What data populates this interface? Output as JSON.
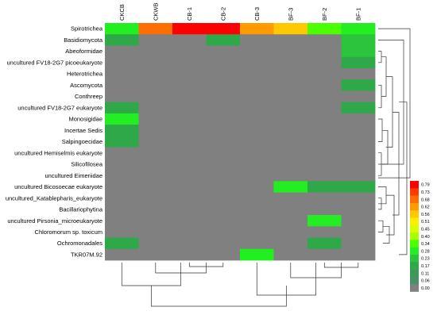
{
  "chart_data": {
    "type": "heatmap",
    "columns": [
      "CKCB",
      "CKWB",
      "CB-1",
      "CB-2",
      "CB-3",
      "BF-3",
      "BF-2",
      "BF-1"
    ],
    "rows": [
      "Spirotrichea",
      "Basidiomycota",
      "Abeoformidae",
      "uncultured FV18-2G7 picoeukaryote",
      "Heterotrichea",
      "Ascomycota",
      "Conthreep",
      "uncultured FV18-2G7 eukaryote",
      "Monosigidae",
      "Incertae Sedis",
      "Salpingoecidae",
      "uncultured Hemiselmis eukaryote",
      "Silicofilosea",
      "uncultured Eimeriidae",
      "uncultured Bicosoecae eukaryote",
      "uncultured_Katablepharis_eukaryote",
      "Bacillariophytina",
      "uncultured Pirsonia_microeukaryote",
      "Chloromorum sp. toxicum",
      "Ochromonadales",
      "TKR07M.92"
    ],
    "values": [
      [
        0.28,
        0.68,
        0.79,
        0.79,
        0.62,
        0.56,
        0.34,
        0.28
      ],
      [
        0.17,
        0.0,
        0.0,
        0.17,
        0.0,
        0.0,
        0.0,
        0.23
      ],
      [
        0.0,
        0.0,
        0.0,
        0.0,
        0.0,
        0.0,
        0.0,
        0.23
      ],
      [
        0.0,
        0.0,
        0.0,
        0.0,
        0.0,
        0.0,
        0.0,
        0.17
      ],
      [
        0.0,
        0.0,
        0.0,
        0.0,
        0.0,
        0.0,
        0.0,
        0.0
      ],
      [
        0.0,
        0.0,
        0.0,
        0.0,
        0.0,
        0.0,
        0.0,
        0.17
      ],
      [
        0.0,
        0.0,
        0.0,
        0.0,
        0.0,
        0.0,
        0.0,
        0.0
      ],
      [
        0.17,
        0.0,
        0.0,
        0.0,
        0.0,
        0.0,
        0.0,
        0.17
      ],
      [
        0.28,
        0.0,
        0.0,
        0.0,
        0.0,
        0.0,
        0.0,
        0.0
      ],
      [
        0.17,
        0.0,
        0.0,
        0.0,
        0.0,
        0.0,
        0.0,
        0.0
      ],
      [
        0.17,
        0.0,
        0.0,
        0.0,
        0.0,
        0.0,
        0.0,
        0.0
      ],
      [
        0.0,
        0.0,
        0.0,
        0.0,
        0.0,
        0.0,
        0.0,
        0.0
      ],
      [
        0.0,
        0.0,
        0.0,
        0.0,
        0.0,
        0.0,
        0.0,
        0.0
      ],
      [
        0.0,
        0.0,
        0.0,
        0.0,
        0.0,
        0.0,
        0.0,
        0.0
      ],
      [
        0.0,
        0.0,
        0.0,
        0.0,
        0.0,
        0.28,
        0.17,
        0.17
      ],
      [
        0.0,
        0.0,
        0.0,
        0.0,
        0.0,
        0.0,
        0.0,
        0.0
      ],
      [
        0.0,
        0.0,
        0.0,
        0.0,
        0.0,
        0.0,
        0.0,
        0.0
      ],
      [
        0.0,
        0.0,
        0.0,
        0.0,
        0.0,
        0.0,
        0.28,
        0.0
      ],
      [
        0.0,
        0.0,
        0.0,
        0.0,
        0.0,
        0.0,
        0.0,
        0.0
      ],
      [
        0.17,
        0.0,
        0.0,
        0.0,
        0.0,
        0.0,
        0.17,
        0.0
      ],
      [
        0.0,
        0.0,
        0.0,
        0.0,
        0.28,
        0.0,
        0.0,
        0.0
      ]
    ],
    "legend": {
      "placement": "right",
      "ticks": [
        0.79,
        0.73,
        0.68,
        0.62,
        0.56,
        0.51,
        0.45,
        0.4,
        0.34,
        0.28,
        0.23,
        0.17,
        0.11,
        0.06,
        0.0
      ],
      "colors": [
        "#ff0000",
        "#ff3c00",
        "#ff6e00",
        "#ff9a00",
        "#ffc800",
        "#ffee00",
        "#d8ff00",
        "#a8ff00",
        "#4cff00",
        "#22ee22",
        "#2cc43c",
        "#2fa84a",
        "#3a9a5a",
        "#4a9068",
        "#808080"
      ]
    },
    "row_dendrogram": {
      "placement": "right"
    },
    "column_dendrogram": {
      "placement": "bottom"
    }
  }
}
